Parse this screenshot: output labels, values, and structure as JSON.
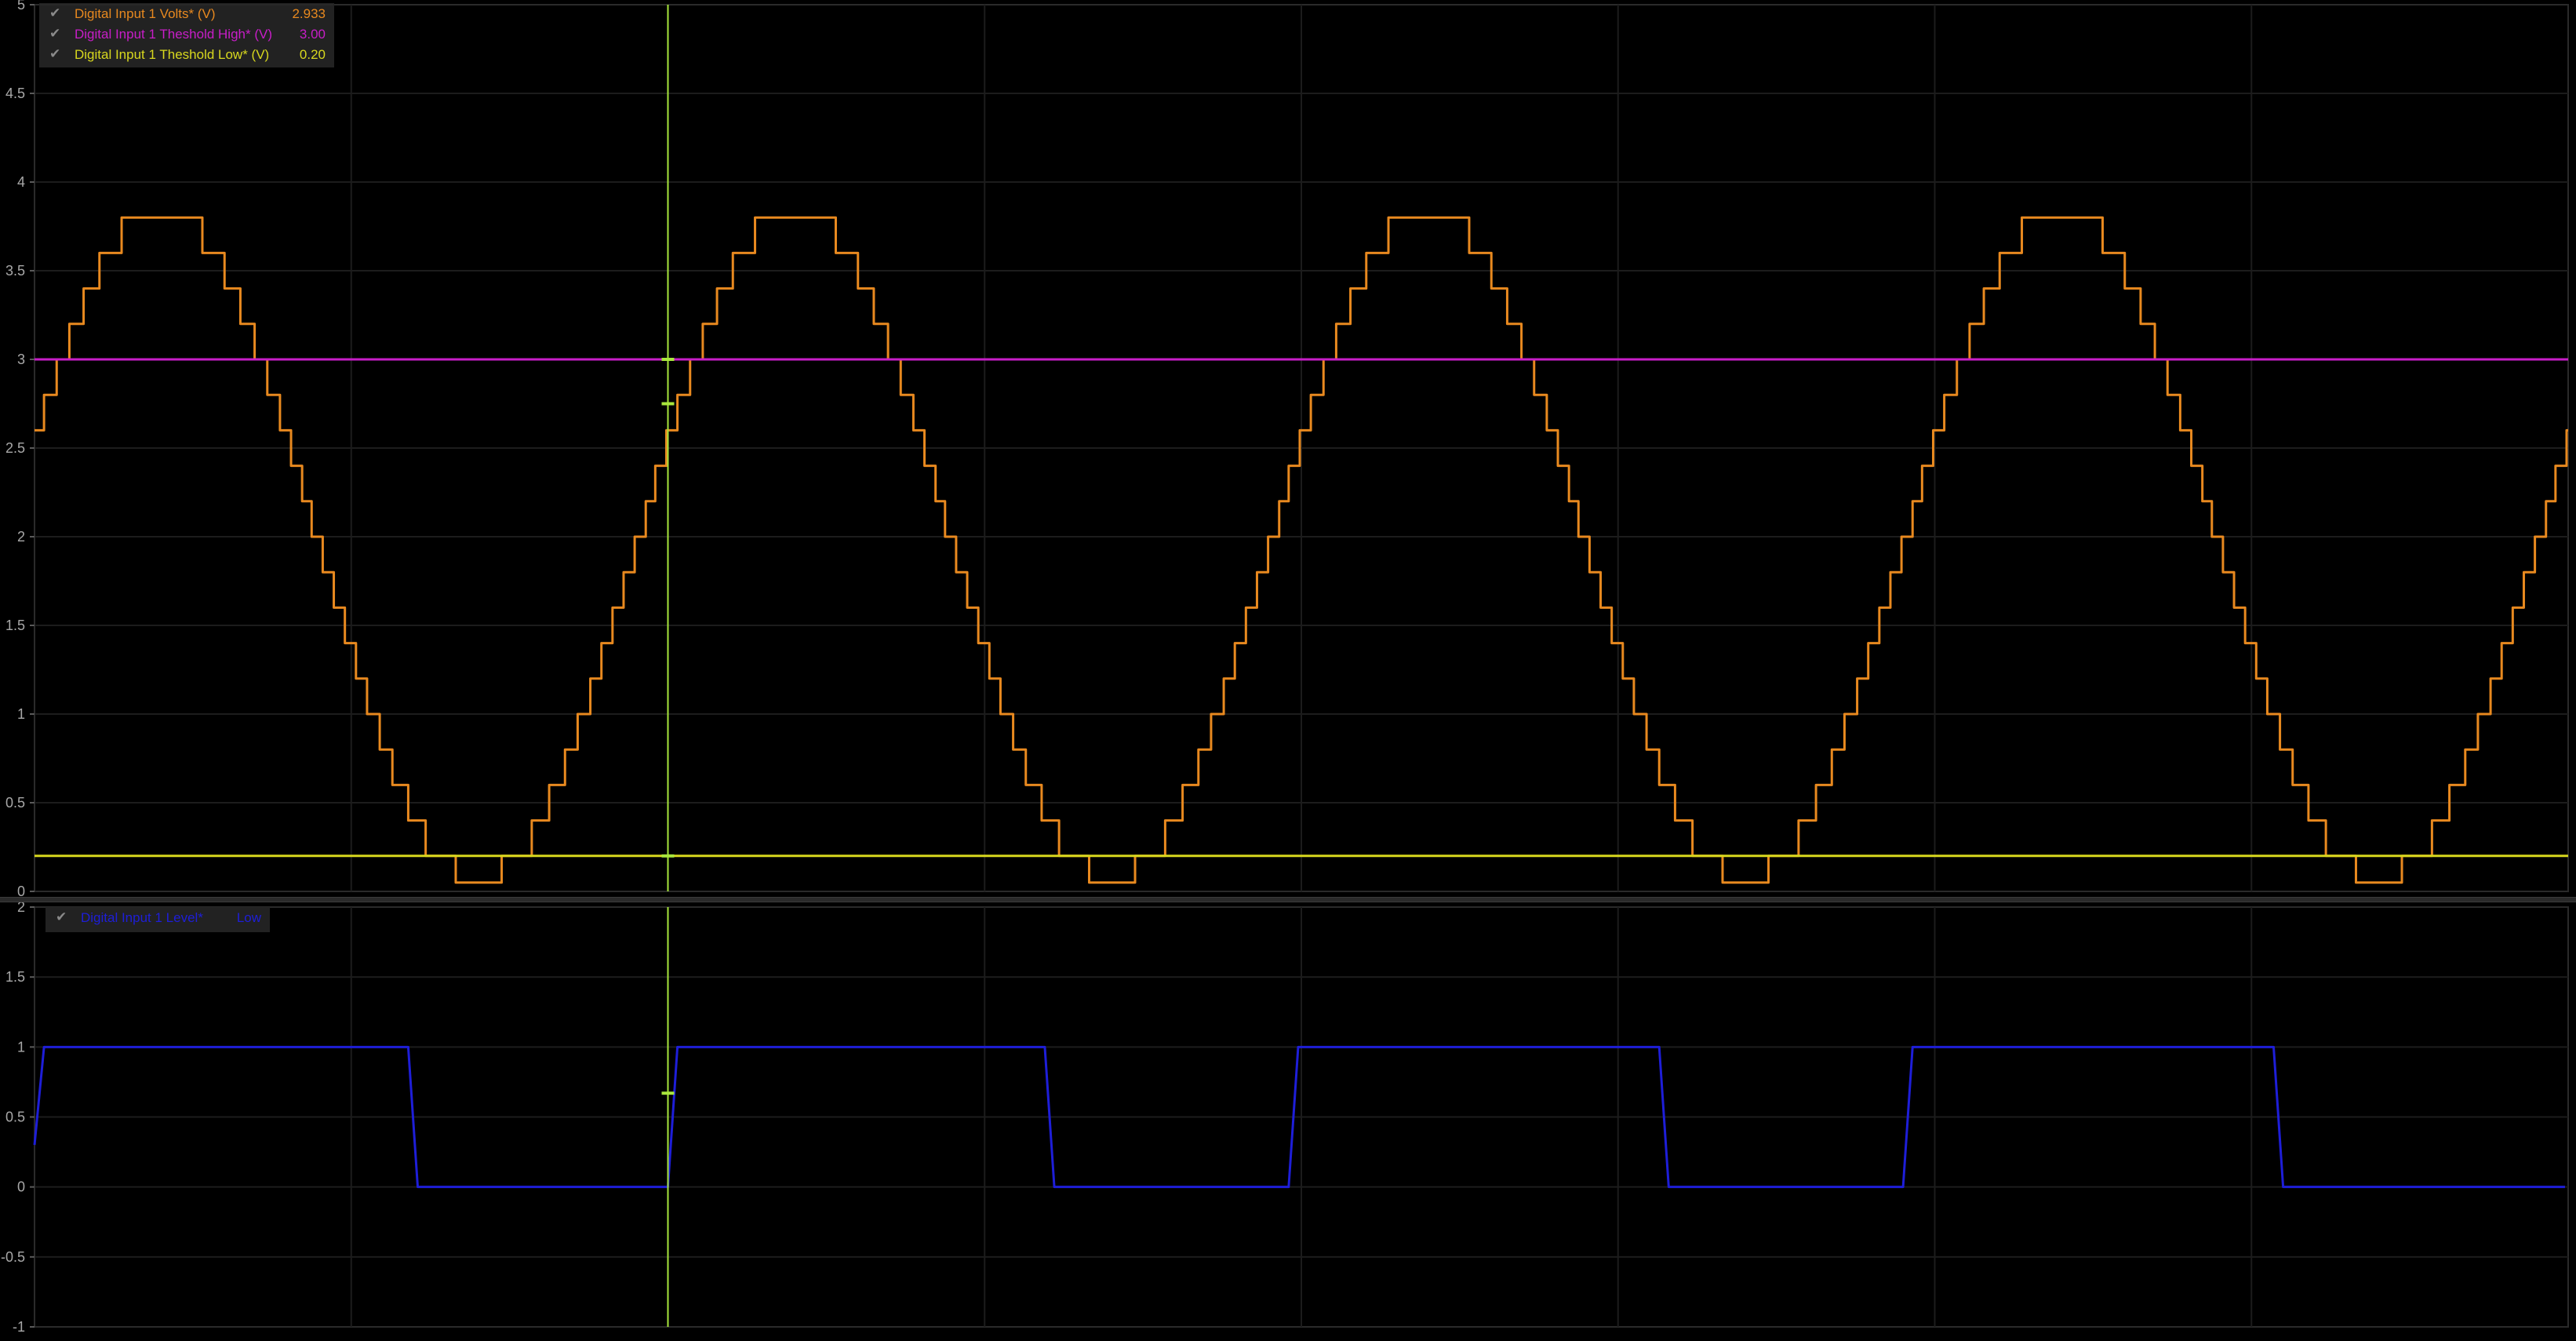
{
  "colors": {
    "background": "#000000",
    "grid": "#1c1c1c",
    "axis_text": "#a8a8a8",
    "volts": "#e8891f",
    "threshold_high": "#c81ec8",
    "threshold_low": "#d8d81e",
    "level": "#1e1ed8",
    "cursor": "#a8e63c"
  },
  "cursor": {
    "time": 10.0,
    "icon": "check-icon"
  },
  "chart_data": [
    {
      "type": "line",
      "title": "",
      "xlabel": "",
      "ylabel": "",
      "xlim": [
        0,
        40
      ],
      "ylim": [
        0,
        5
      ],
      "yticks": [
        "0",
        "0.5",
        "1",
        "1.5",
        "2",
        "2.5",
        "3",
        "3.5",
        "4",
        "4.5",
        "5"
      ],
      "grid": true,
      "legend_position": "top-left",
      "signal": {
        "period": 10,
        "offset": 1.95,
        "amplitude": 1.9,
        "step": 0.2,
        "phase_time": 9.5
      },
      "series": [
        {
          "name": "Digital Input 1 Volts* (V)",
          "value": "2.933",
          "color": "#e8891f",
          "kind": "sampled-sine"
        },
        {
          "name": "Digital Input 1 Theshold High* (V)",
          "value": "3.00",
          "color": "#c81ec8",
          "kind": "constant",
          "y": 3.0
        },
        {
          "name": "Digital Input 1 Theshold Low* (V)",
          "value": "0.20",
          "color": "#d8d81e",
          "kind": "constant",
          "y": 0.2
        }
      ]
    },
    {
      "type": "line",
      "title": "",
      "xlabel": "",
      "ylabel": "",
      "xlim": [
        0,
        40
      ],
      "ylim": [
        -1,
        2
      ],
      "yticks": [
        "-1",
        "-0.5",
        "0",
        "0.5",
        "1",
        "1.5",
        "2"
      ],
      "grid": true,
      "legend_position": "top-left",
      "series": [
        {
          "name": "Digital Input 1 Level*",
          "value": "Low",
          "color": "#1e1ed8",
          "kind": "step",
          "x": [
            0,
            0.15,
            5.9,
            6.05,
            10.0,
            10.15,
            15.95,
            16.1,
            19.8,
            19.95,
            25.65,
            25.8,
            29.5,
            29.65,
            35.35,
            35.5,
            39.95
          ],
          "y": [
            0.3,
            1,
            1,
            0,
            0,
            1,
            1,
            0,
            0,
            1,
            1,
            0,
            0,
            1,
            1,
            0,
            0
          ]
        }
      ]
    }
  ]
}
